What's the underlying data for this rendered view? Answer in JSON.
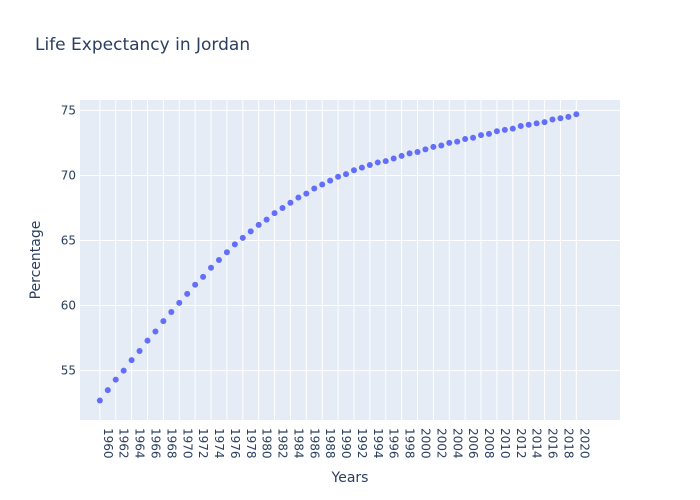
{
  "chart_data": {
    "type": "scatter",
    "title": "Life Expectancy in Jordan",
    "xlabel": "Years",
    "ylabel": "Percentage",
    "xlim": [
      1957.5,
      2025.5
    ],
    "ylim": [
      51.2,
      75.8
    ],
    "x_ticks": [
      1960,
      1962,
      1964,
      1966,
      1968,
      1970,
      1972,
      1974,
      1976,
      1978,
      1980,
      1982,
      1984,
      1986,
      1988,
      1990,
      1992,
      1994,
      1996,
      1998,
      2000,
      2002,
      2004,
      2006,
      2008,
      2010,
      2012,
      2014,
      2016,
      2018,
      2020
    ],
    "y_ticks": [
      55,
      60,
      65,
      70,
      75
    ],
    "grid": true,
    "marker_color": "#636efa",
    "plot_background": "#e5ecf6",
    "series": [
      {
        "x": [
          1960,
          1961,
          1962,
          1963,
          1964,
          1965,
          1966,
          1967,
          1968,
          1969,
          1970,
          1971,
          1972,
          1973,
          1974,
          1975,
          1976,
          1977,
          1978,
          1979,
          1980,
          1981,
          1982,
          1983,
          1984,
          1985,
          1986,
          1987,
          1988,
          1989,
          1990,
          1991,
          1992,
          1993,
          1994,
          1995,
          1996,
          1997,
          1998,
          1999,
          2000,
          2001,
          2002,
          2003,
          2004,
          2005,
          2006,
          2007,
          2008,
          2009,
          2010,
          2011,
          2012,
          2013,
          2014,
          2015,
          2016,
          2017,
          2018,
          2019,
          2020
        ],
        "y": [
          52.7,
          53.5,
          54.3,
          55.0,
          55.8,
          56.5,
          57.3,
          58.0,
          58.8,
          59.5,
          60.2,
          60.9,
          61.6,
          62.2,
          62.9,
          63.5,
          64.1,
          64.7,
          65.2,
          65.7,
          66.2,
          66.6,
          67.1,
          67.5,
          67.9,
          68.3,
          68.6,
          69.0,
          69.3,
          69.6,
          69.9,
          70.1,
          70.4,
          70.6,
          70.8,
          71.0,
          71.1,
          71.3,
          71.5,
          71.7,
          71.8,
          72.0,
          72.2,
          72.3,
          72.5,
          72.6,
          72.8,
          72.9,
          73.1,
          73.2,
          73.4,
          73.5,
          73.6,
          73.8,
          73.9,
          74.0,
          74.1,
          74.3,
          74.4,
          74.5,
          74.7
        ]
      }
    ]
  }
}
